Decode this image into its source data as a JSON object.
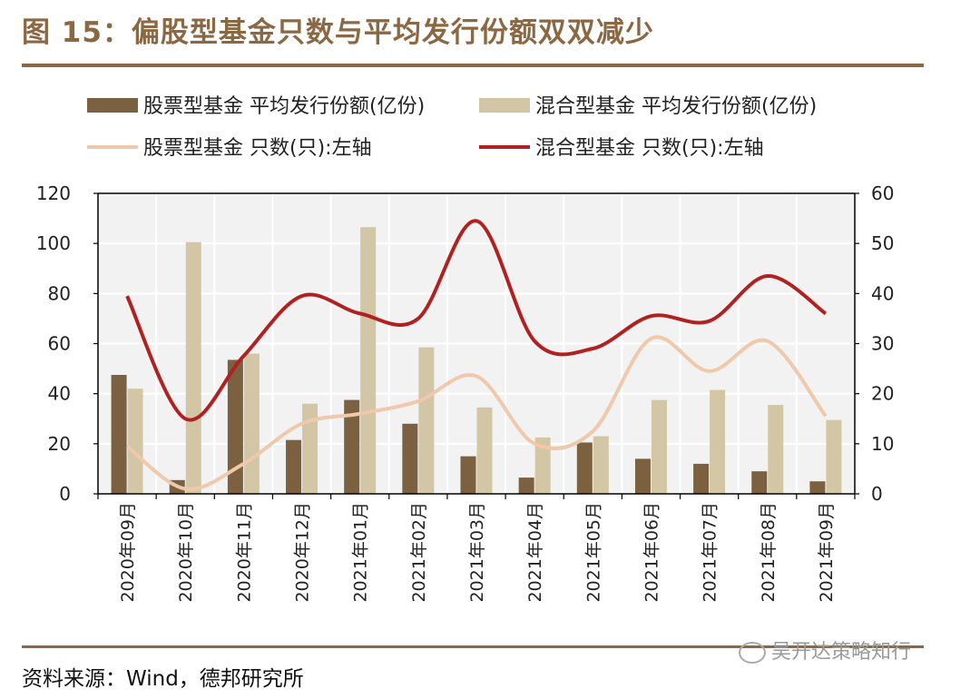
{
  "figure": {
    "title": "图 15：偏股型基金只数与平均发行份额双双减少",
    "source": "资料来源：Wind，德邦研究所",
    "watermark": "吴开达策略知行"
  },
  "colors": {
    "accent": "#8a6843",
    "stock_bar": "#7b6140",
    "mixed_bar": "#d2c6a4",
    "stock_line": "#f0c8ac",
    "mixed_line": "#b02222"
  },
  "chart_data": {
    "type": "bar",
    "categories": [
      "2020年09月",
      "2020年10月",
      "2020年11月",
      "2020年12月",
      "2021年01月",
      "2021年02月",
      "2021年03月",
      "2021年04月",
      "2021年05月",
      "2021年06月",
      "2021年07月",
      "2021年08月",
      "2021年09月"
    ],
    "y_left": {
      "ylim": [
        0,
        120
      ],
      "ticks": [
        0,
        20,
        40,
        60,
        80,
        100,
        120
      ]
    },
    "y_right": {
      "ylim": [
        0,
        60
      ],
      "ticks": [
        0,
        10,
        20,
        30,
        40,
        50,
        60
      ]
    },
    "grid": true,
    "legend_position": "top",
    "series": [
      {
        "name": "股票型基金 平均发行份额(亿份)",
        "type": "bar",
        "axis": "left",
        "color": "#7b6140",
        "values": [
          47.5,
          5.5,
          53.5,
          21.5,
          37.5,
          28,
          15,
          6.5,
          20.5,
          14,
          12,
          9,
          5
        ]
      },
      {
        "name": "混合型基金 平均发行份额(亿份)",
        "type": "bar",
        "axis": "left",
        "color": "#d2c6a4",
        "values": [
          42,
          100.5,
          56,
          36,
          106.5,
          58.5,
          34.5,
          22.5,
          23,
          37.5,
          41.5,
          35.5,
          29.5
        ]
      },
      {
        "name": "股票型基金 只数(只):左轴",
        "type": "line",
        "axis": "left",
        "color": "#f0c8ac",
        "values": [
          19,
          2,
          12,
          28,
          32,
          37,
          47,
          20,
          25,
          62,
          49,
          61,
          31
        ]
      },
      {
        "name": "混合型基金 只数(只):左轴",
        "type": "line",
        "axis": "left",
        "color": "#b02222",
        "values": [
          79,
          30,
          55,
          79,
          72,
          70,
          109,
          61,
          58,
          71,
          69,
          87,
          72
        ]
      }
    ]
  }
}
